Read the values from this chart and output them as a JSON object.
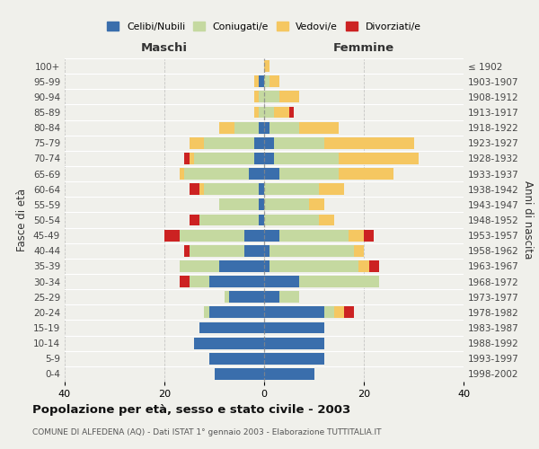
{
  "age_groups": [
    "0-4",
    "5-9",
    "10-14",
    "15-19",
    "20-24",
    "25-29",
    "30-34",
    "35-39",
    "40-44",
    "45-49",
    "50-54",
    "55-59",
    "60-64",
    "65-69",
    "70-74",
    "75-79",
    "80-84",
    "85-89",
    "90-94",
    "95-99",
    "100+"
  ],
  "birth_years": [
    "1998-2002",
    "1993-1997",
    "1988-1992",
    "1983-1987",
    "1978-1982",
    "1973-1977",
    "1968-1972",
    "1963-1967",
    "1958-1962",
    "1953-1957",
    "1948-1952",
    "1943-1947",
    "1938-1942",
    "1933-1937",
    "1928-1932",
    "1923-1927",
    "1918-1922",
    "1913-1917",
    "1908-1912",
    "1903-1907",
    "≤ 1902"
  ],
  "male": {
    "celibi": [
      10,
      11,
      14,
      13,
      11,
      7,
      11,
      9,
      4,
      4,
      1,
      1,
      1,
      3,
      2,
      2,
      1,
      0,
      0,
      1,
      0
    ],
    "coniugati": [
      0,
      0,
      0,
      0,
      1,
      1,
      4,
      8,
      11,
      13,
      12,
      8,
      11,
      13,
      12,
      10,
      5,
      1,
      1,
      0,
      0
    ],
    "vedovi": [
      0,
      0,
      0,
      0,
      0,
      0,
      0,
      0,
      0,
      0,
      0,
      0,
      1,
      1,
      1,
      3,
      3,
      1,
      1,
      1,
      0
    ],
    "divorziati": [
      0,
      0,
      0,
      0,
      0,
      0,
      2,
      0,
      1,
      3,
      2,
      0,
      2,
      0,
      1,
      0,
      0,
      0,
      0,
      0,
      0
    ]
  },
  "female": {
    "nubili": [
      10,
      12,
      12,
      12,
      12,
      3,
      7,
      1,
      1,
      3,
      0,
      0,
      0,
      3,
      2,
      2,
      1,
      0,
      0,
      0,
      0
    ],
    "coniugate": [
      0,
      0,
      0,
      0,
      2,
      4,
      16,
      18,
      17,
      14,
      11,
      9,
      11,
      12,
      13,
      10,
      6,
      2,
      3,
      1,
      0
    ],
    "vedove": [
      0,
      0,
      0,
      0,
      2,
      0,
      0,
      2,
      2,
      3,
      3,
      3,
      5,
      11,
      16,
      18,
      8,
      3,
      4,
      2,
      1
    ],
    "divorziate": [
      0,
      0,
      0,
      0,
      2,
      0,
      0,
      2,
      0,
      2,
      0,
      0,
      0,
      0,
      0,
      0,
      0,
      1,
      0,
      0,
      0
    ]
  },
  "colors": {
    "celibi_nubili": "#3a6eac",
    "coniugati_e": "#c5d9a0",
    "vedovi_e": "#f5c761",
    "divorziati_e": "#cc2222"
  },
  "xlim": 40,
  "title": "Popolazione per età, sesso e stato civile - 2003",
  "subtitle": "COMUNE DI ALFEDENA (AQ) - Dati ISTAT 1° gennaio 2003 - Elaborazione TUTTITALIA.IT",
  "ylabel_left": "Fasce di età",
  "ylabel_right": "Anni di nascita",
  "xlabel_left": "Maschi",
  "xlabel_right": "Femmine",
  "legend_labels": [
    "Celibi/Nubili",
    "Coniugati/e",
    "Vedovi/e",
    "Divorziati/e"
  ],
  "background_color": "#f0f0eb"
}
